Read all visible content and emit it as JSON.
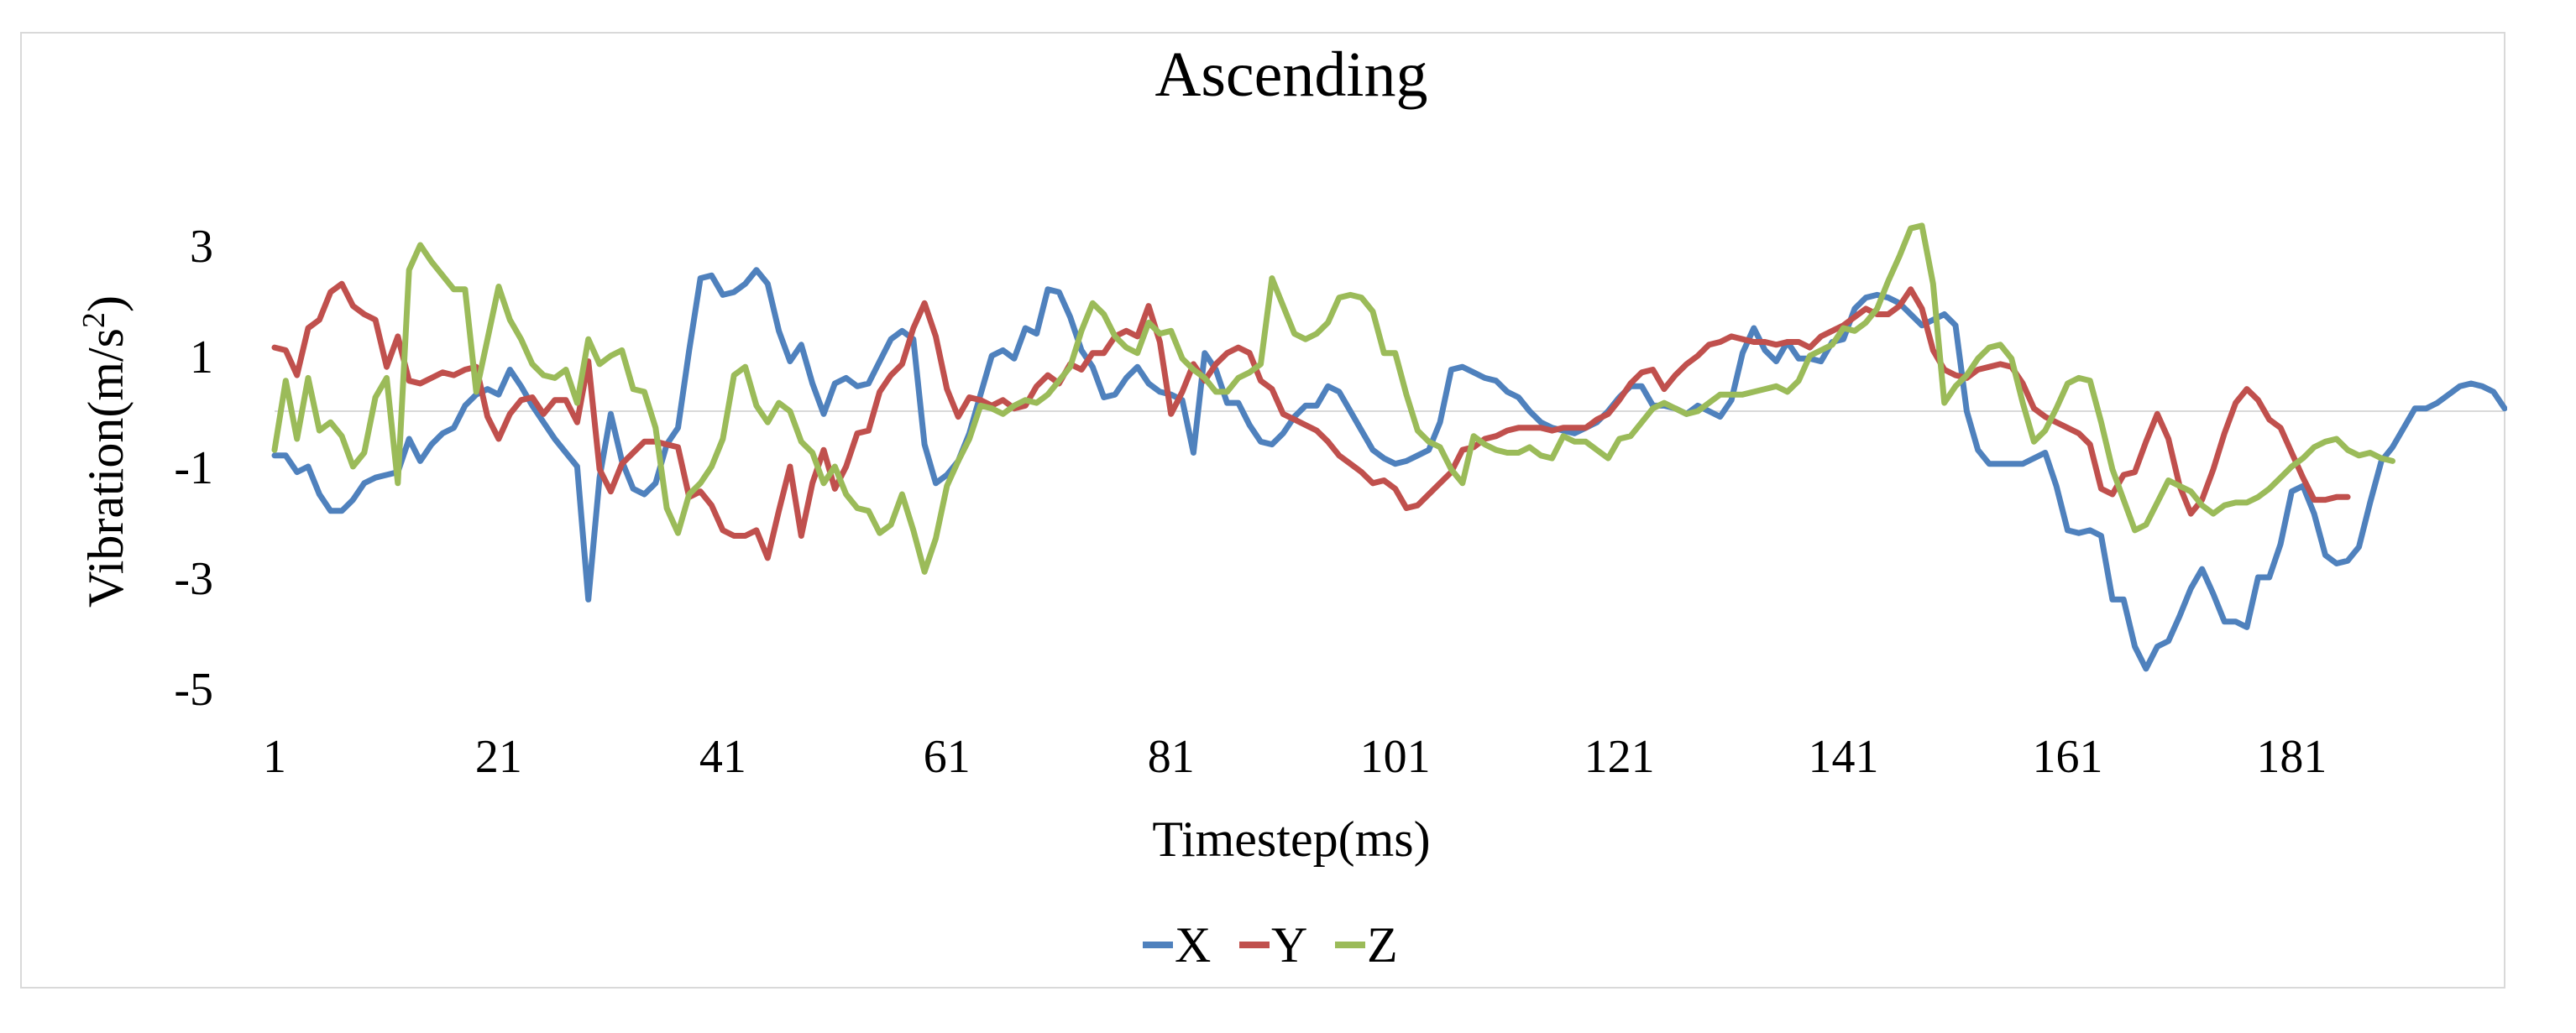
{
  "chart_data": {
    "type": "line",
    "title": "Ascending",
    "xlabel": "Timestep(ms)",
    "ylabel": "Vibration(m/s²)",
    "ylabel_parts": {
      "main": "Vibration(m/s",
      "sup": "2",
      "close": ")"
    },
    "ylim": [
      -5,
      3
    ],
    "yticks": [
      3,
      1,
      -1,
      -3,
      -5
    ],
    "xlim": [
      1,
      200
    ],
    "xticks": [
      1,
      21,
      41,
      61,
      81,
      101,
      121,
      141,
      161,
      181
    ],
    "grid": false,
    "zero_line": true,
    "legend_position": "bottom-center",
    "series": [
      {
        "name": "X",
        "color": "#4f81bd",
        "values": [
          -0.8,
          -0.8,
          -1.1,
          -1.0,
          -1.5,
          -1.8,
          -1.8,
          -1.6,
          -1.3,
          -1.2,
          -1.15,
          -1.1,
          -0.5,
          -0.9,
          -0.6,
          -0.4,
          -0.3,
          0.1,
          0.3,
          0.4,
          0.3,
          0.75,
          0.45,
          0.1,
          -0.2,
          -0.5,
          -0.75,
          -1.0,
          -3.4,
          -1.2,
          -0.05,
          -0.9,
          -1.4,
          -1.5,
          -1.3,
          -0.6,
          -0.3,
          1.1,
          2.4,
          2.45,
          2.1,
          2.15,
          2.3,
          2.55,
          2.3,
          1.45,
          0.9,
          1.2,
          0.5,
          -0.05,
          0.5,
          0.6,
          0.45,
          0.5,
          0.9,
          1.3,
          1.45,
          1.3,
          -0.6,
          -1.3,
          -1.15,
          -0.9,
          -0.4,
          0.3,
          1.0,
          1.1,
          0.95,
          1.5,
          1.4,
          2.2,
          2.15,
          1.7,
          1.1,
          0.8,
          0.25,
          0.3,
          0.6,
          0.8,
          0.5,
          0.35,
          0.3,
          0.2,
          -0.75,
          1.05,
          0.75,
          0.15,
          0.15,
          -0.25,
          -0.55,
          -0.6,
          -0.4,
          -0.1,
          0.1,
          0.1,
          0.45,
          0.35,
          0.0,
          -0.35,
          -0.7,
          -0.85,
          -0.95,
          -0.9,
          -0.8,
          -0.7,
          -0.2,
          0.75,
          0.8,
          0.7,
          0.6,
          0.55,
          0.35,
          0.25,
          0.0,
          -0.2,
          -0.3,
          -0.35,
          -0.4,
          -0.3,
          -0.2,
          0.0,
          0.25,
          0.45,
          0.45,
          0.1,
          0.1,
          0.05,
          -0.05,
          0.1,
          0.0,
          -0.1,
          0.2,
          1.05,
          1.5,
          1.1,
          0.9,
          1.25,
          0.95,
          0.95,
          0.9,
          1.25,
          1.3,
          1.85,
          2.05,
          2.1,
          2.05,
          1.95,
          1.75,
          1.55,
          1.65,
          1.75,
          1.55,
          0.0,
          -0.7,
          -0.95,
          -0.95,
          -0.95,
          -0.95,
          -0.85,
          -0.75,
          -1.35,
          -2.15,
          -2.2,
          -2.15,
          -2.25,
          -3.4,
          -3.4,
          -4.25,
          -4.65,
          -4.25,
          -4.15,
          -3.7,
          -3.2,
          -2.85,
          -3.3,
          -3.8,
          -3.8,
          -3.9,
          -3.0,
          -3.0,
          -2.4,
          -1.45,
          -1.35,
          -1.85,
          -2.6,
          -2.75,
          -2.7,
          -2.45,
          -1.65,
          -0.9,
          -0.65,
          -0.3,
          0.05,
          0.05,
          0.15,
          0.3,
          0.45,
          0.5,
          0.45,
          0.35,
          0.05
        ]
      },
      {
        "name": "Y",
        "color": "#c0504d",
        "values": [
          1.15,
          1.1,
          0.65,
          1.5,
          1.65,
          2.15,
          2.3,
          1.9,
          1.75,
          1.65,
          0.8,
          1.35,
          0.55,
          0.5,
          0.6,
          0.7,
          0.65,
          0.75,
          0.8,
          -0.1,
          -0.5,
          -0.05,
          0.2,
          0.25,
          -0.05,
          0.2,
          0.2,
          -0.2,
          0.9,
          -1.05,
          -1.45,
          -0.95,
          -0.75,
          -0.55,
          -0.55,
          -0.6,
          -0.65,
          -1.55,
          -1.45,
          -1.7,
          -2.15,
          -2.25,
          -2.25,
          -2.15,
          -2.65,
          -1.8,
          -1.0,
          -2.25,
          -1.3,
          -0.7,
          -1.4,
          -1.0,
          -0.4,
          -0.35,
          0.35,
          0.65,
          0.85,
          1.5,
          1.95,
          1.35,
          0.4,
          -0.1,
          0.25,
          0.2,
          0.1,
          0.2,
          0.05,
          0.1,
          0.45,
          0.65,
          0.5,
          0.85,
          0.75,
          1.05,
          1.05,
          1.35,
          1.45,
          1.35,
          1.9,
          1.25,
          -0.05,
          0.35,
          0.85,
          0.55,
          0.85,
          1.05,
          1.15,
          1.05,
          0.55,
          0.4,
          -0.05,
          -0.15,
          -0.25,
          -0.35,
          -0.55,
          -0.8,
          -0.95,
          -1.1,
          -1.3,
          -1.25,
          -1.4,
          -1.75,
          -1.7,
          -1.5,
          -1.3,
          -1.1,
          -0.7,
          -0.65,
          -0.5,
          -0.45,
          -0.35,
          -0.3,
          -0.3,
          -0.3,
          -0.35,
          -0.3,
          -0.3,
          -0.3,
          -0.15,
          -0.05,
          0.2,
          0.5,
          0.7,
          0.75,
          0.4,
          0.65,
          0.85,
          1.0,
          1.2,
          1.25,
          1.35,
          1.3,
          1.25,
          1.25,
          1.2,
          1.25,
          1.25,
          1.15,
          1.35,
          1.45,
          1.55,
          1.7,
          1.85,
          1.75,
          1.75,
          1.9,
          2.2,
          1.85,
          1.1,
          0.75,
          0.65,
          0.6,
          0.75,
          0.8,
          0.85,
          0.8,
          0.5,
          0.05,
          -0.1,
          -0.2,
          -0.3,
          -0.4,
          -0.6,
          -1.4,
          -1.5,
          -1.15,
          -1.1,
          -0.55,
          -0.05,
          -0.5,
          -1.35,
          -1.85,
          -1.6,
          -1.05,
          -0.4,
          0.15,
          0.4,
          0.2,
          -0.15,
          -0.3,
          -0.75,
          -1.2,
          -1.6,
          -1.6,
          -1.55,
          -1.55
        ]
      },
      {
        "name": "Z",
        "color": "#9bbb59",
        "values": [
          -0.7,
          0.55,
          -0.5,
          0.6,
          -0.35,
          -0.2,
          -0.45,
          -1.0,
          -0.75,
          0.25,
          0.6,
          -1.3,
          2.55,
          3.0,
          2.7,
          2.45,
          2.2,
          2.2,
          0.35,
          1.3,
          2.25,
          1.65,
          1.3,
          0.85,
          0.65,
          0.6,
          0.75,
          0.15,
          1.3,
          0.85,
          1.0,
          1.1,
          0.4,
          0.35,
          -0.3,
          -1.75,
          -2.2,
          -1.5,
          -1.3,
          -1.0,
          -0.5,
          0.65,
          0.8,
          0.1,
          -0.2,
          0.15,
          0.0,
          -0.55,
          -0.75,
          -1.3,
          -1.0,
          -1.5,
          -1.75,
          -1.8,
          -2.2,
          -2.05,
          -1.5,
          -2.15,
          -2.9,
          -2.3,
          -1.35,
          -0.9,
          -0.5,
          0.1,
          0.05,
          -0.05,
          0.1,
          0.2,
          0.15,
          0.3,
          0.55,
          0.8,
          1.45,
          1.95,
          1.75,
          1.35,
          1.15,
          1.05,
          1.6,
          1.4,
          1.45,
          0.95,
          0.75,
          0.6,
          0.35,
          0.35,
          0.6,
          0.7,
          0.85,
          2.4,
          1.9,
          1.4,
          1.3,
          1.4,
          1.6,
          2.05,
          2.1,
          2.05,
          1.8,
          1.05,
          1.05,
          0.3,
          -0.35,
          -0.55,
          -0.65,
          -1.05,
          -1.3,
          -0.45,
          -0.6,
          -0.7,
          -0.75,
          -0.75,
          -0.65,
          -0.8,
          -0.85,
          -0.45,
          -0.55,
          -0.55,
          -0.7,
          -0.85,
          -0.5,
          -0.45,
          -0.2,
          0.05,
          0.15,
          0.05,
          -0.05,
          0.0,
          0.15,
          0.3,
          0.3,
          0.3,
          0.35,
          0.4,
          0.45,
          0.35,
          0.55,
          1.0,
          1.1,
          1.2,
          1.5,
          1.45,
          1.6,
          1.85,
          2.35,
          2.8,
          3.3,
          3.35,
          2.3,
          0.15,
          0.45,
          0.65,
          0.95,
          1.15,
          1.2,
          0.95,
          0.15,
          -0.55,
          -0.35,
          0.05,
          0.5,
          0.6,
          0.55,
          -0.2,
          -1.05,
          -1.6,
          -2.15,
          -2.05,
          -1.65,
          -1.25,
          -1.35,
          -1.45,
          -1.7,
          -1.85,
          -1.7,
          -1.65,
          -1.65,
          -1.55,
          -1.4,
          -1.2,
          -1.0,
          -0.85,
          -0.65,
          -0.55,
          -0.5,
          -0.7,
          -0.8,
          -0.75,
          -0.85,
          -0.9
        ]
      }
    ]
  }
}
